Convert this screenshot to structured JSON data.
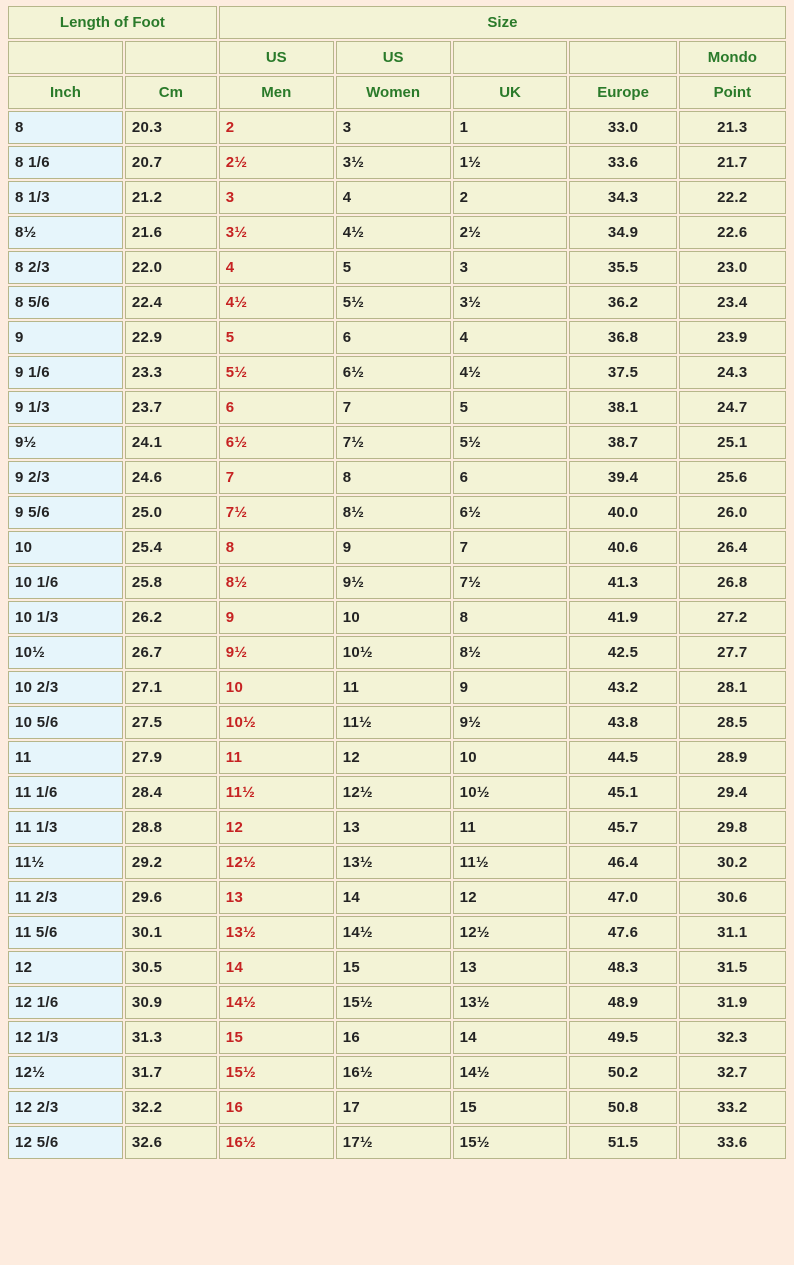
{
  "headers": {
    "length_of_foot": "Length of Foot",
    "size": "Size",
    "us1": "US",
    "us2": "US",
    "mondo": "Mondo",
    "inch": "Inch",
    "cm": "Cm",
    "men": "Men",
    "women": "Women",
    "uk": "UK",
    "europe": "Europe",
    "point": "Point"
  },
  "styling": {
    "header_bg": "#f3f3d6",
    "header_color": "#2a7a2a",
    "cell_bg": "#f3f3d6",
    "inch_bg": "#e6f5fb",
    "usmen_color": "#c62222",
    "body_bg": "#fdecdf",
    "border_color": "#b6b68a",
    "font_family": "Verdana",
    "font_size_pt": 11,
    "font_weight": "bold"
  },
  "columns": [
    "inch",
    "cm",
    "us_men",
    "us_women",
    "uk",
    "europe",
    "mondo"
  ],
  "rows": [
    [
      "8",
      "20.3",
      "2",
      "3",
      "1",
      "33.0",
      "21.3"
    ],
    [
      "8 1/6",
      "20.7",
      "2½",
      "3½",
      "1½",
      "33.6",
      "21.7"
    ],
    [
      "8 1/3",
      "21.2",
      "3",
      "4",
      "2",
      "34.3",
      "22.2"
    ],
    [
      "8½",
      "21.6",
      "3½",
      "4½",
      "2½",
      "34.9",
      "22.6"
    ],
    [
      "8 2/3",
      "22.0",
      "4",
      "5",
      "3",
      "35.5",
      "23.0"
    ],
    [
      "8 5/6",
      "22.4",
      "4½",
      "5½",
      "3½",
      "36.2",
      "23.4"
    ],
    [
      "9",
      "22.9",
      "5",
      "6",
      "4",
      "36.8",
      "23.9"
    ],
    [
      "9 1/6",
      "23.3",
      "5½",
      "6½",
      "4½",
      "37.5",
      "24.3"
    ],
    [
      "9 1/3",
      "23.7",
      "6",
      "7",
      "5",
      "38.1",
      "24.7"
    ],
    [
      "9½",
      "24.1",
      "6½",
      "7½",
      "5½",
      "38.7",
      "25.1"
    ],
    [
      "9 2/3",
      "24.6",
      "7",
      "8",
      "6",
      "39.4",
      "25.6"
    ],
    [
      "9 5/6",
      "25.0",
      "7½",
      "8½",
      "6½",
      "40.0",
      "26.0"
    ],
    [
      "10",
      "25.4",
      "8",
      "9",
      "7",
      "40.6",
      "26.4"
    ],
    [
      "10 1/6",
      "25.8",
      "8½",
      "9½",
      "7½",
      "41.3",
      "26.8"
    ],
    [
      "10 1/3",
      "26.2",
      "9",
      "10",
      "8",
      "41.9",
      "27.2"
    ],
    [
      "10½",
      "26.7",
      "9½",
      "10½",
      "8½",
      "42.5",
      "27.7"
    ],
    [
      "10 2/3",
      "27.1",
      "10",
      "11",
      "9",
      "43.2",
      "28.1"
    ],
    [
      "10 5/6",
      "27.5",
      "10½",
      "11½",
      "9½",
      "43.8",
      "28.5"
    ],
    [
      "11",
      "27.9",
      "11",
      "12",
      "10",
      "44.5",
      "28.9"
    ],
    [
      "11 1/6",
      "28.4",
      "11½",
      "12½",
      "10½",
      "45.1",
      "29.4"
    ],
    [
      "11 1/3",
      "28.8",
      "12",
      "13",
      "11",
      "45.7",
      "29.8"
    ],
    [
      "11½",
      "29.2",
      "12½",
      "13½",
      "11½",
      "46.4",
      "30.2"
    ],
    [
      "11 2/3",
      "29.6",
      "13",
      "14",
      "12",
      "47.0",
      "30.6"
    ],
    [
      "11 5/6",
      "30.1",
      "13½",
      "14½",
      "12½",
      "47.6",
      "31.1"
    ],
    [
      "12",
      "30.5",
      "14",
      "15",
      "13",
      "48.3",
      "31.5"
    ],
    [
      "12 1/6",
      "30.9",
      "14½",
      "15½",
      "13½",
      "48.9",
      "31.9"
    ],
    [
      "12 1/3",
      "31.3",
      "15",
      "16",
      "14",
      "49.5",
      "32.3"
    ],
    [
      "12½",
      "31.7",
      "15½",
      "16½",
      "14½",
      "50.2",
      "32.7"
    ],
    [
      "12 2/3",
      "32.2",
      "16",
      "17",
      "15",
      "50.8",
      "33.2"
    ],
    [
      "12 5/6",
      "32.6",
      "16½",
      "17½",
      "15½",
      "51.5",
      "33.6"
    ]
  ]
}
